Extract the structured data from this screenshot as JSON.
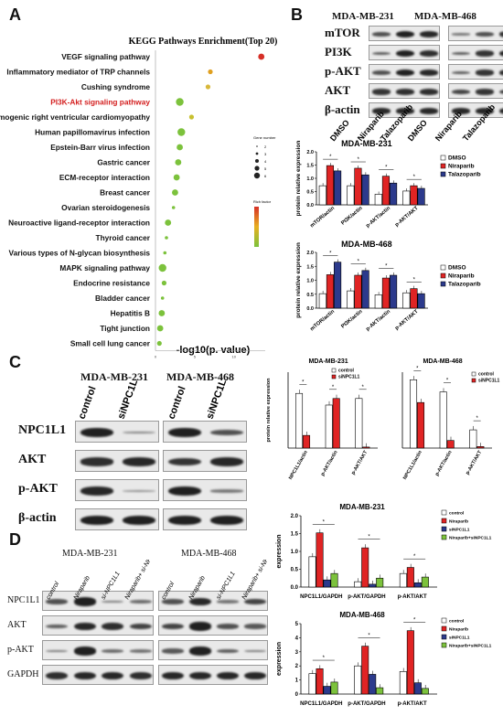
{
  "panels": {
    "a": "A",
    "b": "B",
    "c": "C",
    "d": "D"
  },
  "kegg": {
    "title": "KEGG Pathways Enrichment(Top 20)",
    "xlabel": "-log10(p. value)",
    "highlight_color": "#d42020",
    "pathways": [
      {
        "name": "VEGF signaling pathway",
        "x": 13.5,
        "size": 3,
        "color": "#d62f27"
      },
      {
        "name": "Inflammatory mediator of TRP channels",
        "x": 7.0,
        "size": 2,
        "color": "#e0a020"
      },
      {
        "name": "Cushing syndrome",
        "x": 6.7,
        "size": 2,
        "color": "#d8b83a"
      },
      {
        "name": "PI3K-Akt signaling pathway",
        "x": 3.1,
        "size": 4,
        "color": "#7cc23c",
        "highlight": true
      },
      {
        "name": "Arrhythmogenic right ventricular cardiomyopathy",
        "x": 4.6,
        "size": 2,
        "color": "#c8c030"
      },
      {
        "name": "Human papillomavirus infection",
        "x": 3.3,
        "size": 4,
        "color": "#7cc23c"
      },
      {
        "name": "Epstein-Barr virus infection",
        "x": 3.1,
        "size": 3,
        "color": "#7cc23c"
      },
      {
        "name": "Gastric cancer",
        "x": 2.9,
        "size": 3,
        "color": "#7cc23c"
      },
      {
        "name": "ECM-receptor interaction",
        "x": 2.7,
        "size": 3,
        "color": "#7cc23c"
      },
      {
        "name": "Breast cancer",
        "x": 2.5,
        "size": 3,
        "color": "#7cc23c"
      },
      {
        "name": "Ovarian steroidogenesis",
        "x": 2.3,
        "size": 1,
        "color": "#7cc23c"
      },
      {
        "name": "Neuroactive ligand-receptor interaction",
        "x": 1.6,
        "size": 3,
        "color": "#7cc23c"
      },
      {
        "name": "Thyroid cancer",
        "x": 1.4,
        "size": 1,
        "color": "#7cc23c"
      },
      {
        "name": "Various types of N-glycan biosynthesis",
        "x": 1.2,
        "size": 1,
        "color": "#7cc23c"
      },
      {
        "name": "MAPK signaling pathway",
        "x": 0.9,
        "size": 4,
        "color": "#7cc23c"
      },
      {
        "name": "Endocrine resistance",
        "x": 1.1,
        "size": 2,
        "color": "#7cc23c"
      },
      {
        "name": "Bladder cancer",
        "x": 0.9,
        "size": 1,
        "color": "#7cc23c"
      },
      {
        "name": "Hepatitis B",
        "x": 0.8,
        "size": 3,
        "color": "#7cc23c"
      },
      {
        "name": "Tight junction",
        "x": 0.6,
        "size": 3,
        "color": "#7cc23c"
      },
      {
        "name": "Small cell lung cancer",
        "x": 0.5,
        "size": 2,
        "color": "#7cc23c"
      }
    ],
    "xticks": [
      "0",
      "5",
      "10"
    ],
    "size_legend_title": "Gene number",
    "size_legend": [
      "2",
      "3",
      "4",
      "5",
      "6"
    ],
    "color_legend_title": "Rich factor"
  },
  "blot_b": {
    "cells": [
      "MDA-MB-231",
      "MDA-MB-468"
    ],
    "proteins": [
      "mTOR",
      "PI3K",
      "p-AKT",
      "AKT",
      "β-actin"
    ],
    "lanes": [
      "DMSO",
      "Niraparib",
      "Talazoparib",
      "DMSO",
      "Niraparib",
      "Talazoparib"
    ]
  },
  "blot_c": {
    "cells": [
      "MDA-MB-231",
      "MDA-MB-468"
    ],
    "proteins": [
      "NPC1L1",
      "AKT",
      "p-AKT",
      "β-actin"
    ],
    "lanes": [
      "control",
      "siNPC1L1",
      "control",
      "siNPC1L1"
    ]
  },
  "blot_d": {
    "cells": [
      "MDA-MB-231",
      "MDA-MB-468"
    ],
    "proteins": [
      "NPC1L1",
      "AKT",
      "p-AKT",
      "GAPDH"
    ],
    "lanes": [
      "control",
      "Niraparib",
      "si-NPC1L1",
      "Niraparib+ si-NPC1L1",
      "control",
      "Niraparib",
      "si-NPC1L1",
      "Niraparib+ si-NPC1L1"
    ]
  },
  "chart_data": [
    {
      "type": "bar",
      "title": "MDA-MB-231",
      "ylabel": "protein relative expression",
      "ylim": [
        0,
        2
      ],
      "yticks": [
        "0.0",
        "0.5",
        "1.0",
        "1.5",
        "2.0"
      ],
      "categories": [
        "mTOR/actin",
        "PI3K/actin",
        "p-AKT/actin",
        "p-AKT/AKT"
      ],
      "series": [
        {
          "name": "DMSO",
          "values": [
            0.72,
            0.72,
            0.4,
            0.52
          ],
          "color": "#ffffff"
        },
        {
          "name": "Niraparib",
          "values": [
            1.48,
            1.38,
            1.08,
            0.72
          ],
          "color": "#e02424"
        },
        {
          "name": "Talazoparib",
          "values": [
            1.28,
            1.13,
            0.82,
            0.62
          ],
          "color": "#2c3a8c"
        }
      ],
      "sig": [
        "*",
        "*",
        "*",
        "*",
        "*",
        "*",
        "*",
        "*",
        "ns"
      ]
    },
    {
      "type": "bar",
      "title": "MDA-MB-468",
      "ylabel": "protein relative expression",
      "ylim": [
        0,
        2
      ],
      "yticks": [
        "0.0",
        "0.5",
        "1.0",
        "1.5",
        "2.0"
      ],
      "categories": [
        "mTOR/actin",
        "PI3K/actin",
        "p-AKT/actin",
        "p-AKT/AKT"
      ],
      "series": [
        {
          "name": "DMSO",
          "values": [
            0.52,
            0.62,
            0.48,
            0.55
          ],
          "color": "#ffffff"
        },
        {
          "name": "Niraparib",
          "values": [
            1.2,
            1.18,
            1.08,
            0.7
          ],
          "color": "#e02424"
        },
        {
          "name": "Talazoparib",
          "values": [
            1.65,
            1.35,
            1.18,
            0.52
          ],
          "color": "#2c3a8c"
        }
      ],
      "sig": [
        "*",
        "*",
        "*",
        "*",
        "*",
        "*",
        "*",
        "*",
        "ns"
      ]
    },
    {
      "type": "bar",
      "title": "MDA-MB-231",
      "ylabel": "protein relative expression",
      "ylim": [
        0,
        1.5
      ],
      "categories": [
        "NPC1L1/actin",
        "p-AKT/actin",
        "p-AKT/AKT"
      ],
      "series": [
        {
          "name": "control",
          "values": [
            1.08,
            0.85,
            0.98
          ],
          "color": "#ffffff"
        },
        {
          "name": "siNPC1L1",
          "values": [
            0.25,
            0.98,
            0.02
          ],
          "color": "#e02424"
        }
      ],
      "sig": [
        "*",
        "*",
        "*"
      ]
    },
    {
      "type": "bar",
      "title": "MDA-MB-468",
      "ylabel": "",
      "ylim": [
        0,
        5
      ],
      "categories": [
        "NPC1L1/actin",
        "p-AKT/actin",
        "p-AKT/AKT"
      ],
      "series": [
        {
          "name": "control",
          "values": [
            4.5,
            3.7,
            1.2
          ],
          "color": "#ffffff"
        },
        {
          "name": "siNPC1L1",
          "values": [
            3.0,
            0.5,
            0.1
          ],
          "color": "#e02424"
        }
      ],
      "sig": [
        "*",
        "*",
        "*"
      ]
    },
    {
      "type": "bar",
      "title": "MDA-MB-231",
      "ylabel": "expression",
      "ylim": [
        0,
        2.0
      ],
      "yticks": [
        "0.0",
        "0.5",
        "1.0",
        "1.5",
        "2.0"
      ],
      "categories": [
        "NPC1L1/GAPDH",
        "p-AKT/GAPDH",
        "p-AKT/AKT"
      ],
      "series": [
        {
          "name": "control",
          "values": [
            0.85,
            0.15,
            0.38
          ],
          "color": "#ffffff"
        },
        {
          "name": "Niraparib",
          "values": [
            1.52,
            1.1,
            0.55
          ],
          "color": "#e02424"
        },
        {
          "name": "siNPC1L1",
          "values": [
            0.2,
            0.08,
            0.12
          ],
          "color": "#2c3a8c"
        },
        {
          "name": "Niraparib+siNPC1L1",
          "values": [
            0.38,
            0.25,
            0.28
          ],
          "color": "#7cc23c"
        }
      ],
      "sig": [
        "*",
        "*",
        "*",
        "*",
        "*",
        "*"
      ]
    },
    {
      "type": "bar",
      "title": "MDA-MB-468",
      "ylabel": "expression",
      "ylim": [
        0,
        5
      ],
      "yticks": [
        "0",
        "1",
        "2",
        "3",
        "4",
        "5"
      ],
      "categories": [
        "NPC1L1/GAPDH",
        "p-AKT/GAPDH",
        "p-AKT/AKT"
      ],
      "series": [
        {
          "name": "control",
          "values": [
            1.45,
            2.0,
            1.6
          ],
          "color": "#ffffff"
        },
        {
          "name": "Niraparib",
          "values": [
            1.8,
            3.4,
            4.5
          ],
          "color": "#e02424"
        },
        {
          "name": "siNPC1L1",
          "values": [
            0.55,
            1.4,
            0.8
          ],
          "color": "#2c3a8c"
        },
        {
          "name": "Niraparib+siNPC1L1",
          "values": [
            0.85,
            0.45,
            0.4
          ],
          "color": "#7cc23c"
        }
      ],
      "sig": [
        "*",
        "*",
        "*",
        "*",
        "*",
        "*"
      ]
    }
  ]
}
